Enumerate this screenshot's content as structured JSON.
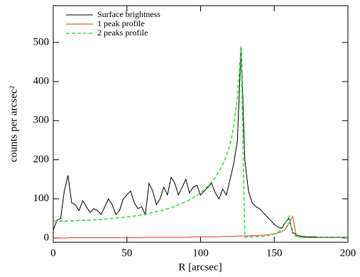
{
  "chart_data": {
    "type": "line",
    "xlabel": "R [arcsec]",
    "ylabel": "counts per arcsec²",
    "xlim": [
      0,
      200
    ],
    "xticks": [
      0,
      50,
      100,
      150,
      200
    ],
    "ylim": [
      -11,
      594
    ],
    "yticks": [
      0,
      100,
      200,
      300,
      400,
      500
    ],
    "legend": "top-left",
    "x": [
      0,
      2.5,
      5,
      7.5,
      10,
      12.5,
      15,
      17.5,
      20,
      22.5,
      25,
      27.5,
      30,
      32.5,
      35,
      37.5,
      40,
      42.5,
      45,
      47.5,
      50,
      52.5,
      55,
      57.5,
      60,
      62.5,
      65,
      67.5,
      70,
      72.5,
      75,
      77.5,
      80,
      82.5,
      85,
      87.5,
      90,
      92.5,
      95,
      97.5,
      100,
      102.5,
      105,
      107.5,
      110,
      112.5,
      115,
      117.5,
      120,
      122.5,
      125,
      127.5,
      130,
      132.5,
      135,
      137.5,
      140,
      142.5,
      145,
      147.5,
      150,
      152.5,
      155,
      157.5,
      160,
      162.5,
      165,
      167.5,
      170,
      172.5,
      175,
      177.5,
      180,
      182.5,
      185,
      187.5,
      190,
      192.5,
      195,
      197.5,
      200
    ],
    "series": [
      {
        "name": "Surface brightness",
        "color": "#000000",
        "dash": false,
        "values": [
          20,
          45,
          50,
          120,
          160,
          90,
          85,
          70,
          95,
          80,
          65,
          75,
          70,
          60,
          80,
          100,
          85,
          60,
          70,
          100,
          110,
          120,
          90,
          75,
          80,
          60,
          140,
          120,
          85,
          100,
          130,
          110,
          155,
          140,
          110,
          130,
          150,
          115,
          130,
          135,
          110,
          120,
          130,
          140,
          115,
          100,
          125,
          110,
          150,
          190,
          250,
          490,
          200,
          120,
          90,
          80,
          75,
          65,
          55,
          45,
          35,
          28,
          25,
          40,
          50,
          15,
          8,
          5,
          4,
          3,
          3,
          3,
          2,
          2,
          2,
          2,
          2,
          2,
          2,
          2,
          2
        ]
      },
      {
        "name": "1 peak profile",
        "color": "#e8331a",
        "dash": false,
        "values": [
          0,
          0,
          0,
          0,
          0,
          1,
          1,
          1,
          1,
          1,
          1,
          1,
          1,
          1,
          1,
          1,
          1,
          1,
          1,
          1,
          1,
          1,
          1,
          1,
          1,
          2,
          2,
          2,
          2,
          2,
          2,
          2,
          2,
          2,
          2,
          2,
          2,
          2,
          3,
          3,
          3,
          3,
          3,
          3,
          3,
          3,
          4,
          4,
          4,
          4,
          5,
          5,
          5,
          5,
          6,
          6,
          7,
          7,
          8,
          9,
          11,
          13,
          16,
          22,
          38,
          55,
          5,
          2,
          1,
          1,
          1,
          1,
          1,
          1,
          1,
          1,
          1,
          1,
          1,
          1,
          1
        ]
      },
      {
        "name": "2 peaks profile",
        "color": "#33e04a",
        "dash": true,
        "values": [
          42,
          43,
          43,
          43,
          44,
          44,
          44,
          45,
          45,
          45,
          46,
          46,
          47,
          47,
          48,
          49,
          50,
          51,
          52,
          53,
          54,
          55,
          56,
          58,
          59,
          61,
          63,
          65,
          67,
          69,
          72,
          75,
          78,
          81,
          85,
          89,
          93,
          98,
          103,
          109,
          116,
          124,
          133,
          143,
          155,
          170,
          188,
          210,
          240,
          285,
          360,
          490,
          2,
          3,
          3,
          3,
          4,
          4,
          6,
          8,
          10,
          14,
          22,
          38,
          55,
          10,
          4,
          2,
          1,
          1,
          1,
          1,
          1,
          1,
          1,
          1,
          1,
          1,
          1,
          1,
          1
        ]
      }
    ]
  }
}
